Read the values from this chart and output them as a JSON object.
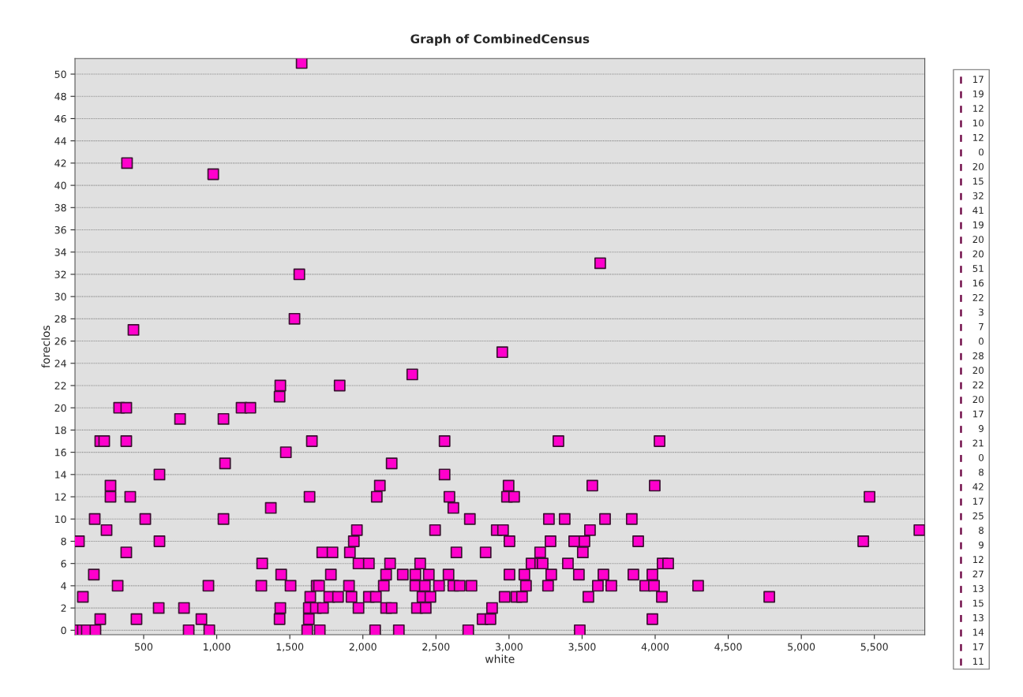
{
  "chart_data": {
    "type": "scatter",
    "title": "Graph of CombinedCensus",
    "xlabel": "white",
    "ylabel": "foreclos",
    "x": [
      1435,
      1430,
      1841,
      332,
      381,
      1170,
      1230,
      749,
      1046,
      203,
      230,
      381,
      1651,
      1473,
      1057,
      608,
      273,
      273,
      408,
      1635,
      1370,
      165,
      511,
      1046,
      246,
      1959,
      57,
      608,
      1938,
      381,
      1722,
      1792,
      1911,
      1311,
      1970,
      159,
      1441,
      1781,
      322,
      943,
      1305,
      1505,
      1684,
      1700,
      1905,
      84,
      1640,
      1770,
      1830,
      1922,
      603,
      776,
      1435,
      1630,
      1678,
      1727,
      1970,
      203,
      451,
      895,
      1430,
      1630,
      62,
      84,
      111,
      170,
      808,
      949,
      1619,
      1705,
      2954,
      2338,
      2559,
      3338,
      2197,
      2559,
      2116,
      2095,
      2592,
      2997,
      2986,
      3035,
      2619,
      3570,
      2732,
      3273,
      3381,
      3657,
      3840,
      2494,
      2916,
      2959,
      3554,
      3003,
      3284,
      3446,
      3516,
      3884,
      2640,
      2840,
      3213,
      3505,
      2041,
      2186,
      2392,
      3154,
      3213,
      3230,
      3403,
      2159,
      2273,
      2359,
      2451,
      2586,
      3003,
      3105,
      3289,
      3478,
      3646,
      3851,
      2143,
      2359,
      2424,
      2521,
      2619,
      2662,
      2743,
      3116,
      3267,
      3608,
      3700,
      3932,
      2041,
      2089,
      2408,
      2462,
      2970,
      3051,
      3089,
      3543,
      2159,
      2197,
      2370,
      2430,
      2884,
      2819,
      2873,
      2084,
      2246,
      2721,
      3484,
      4030,
      3997,
      5467,
      5808,
      5424,
      4051,
      4089,
      3981,
      3992,
      4294,
      4046,
      4781,
      3981,
      1581,
      386,
      976,
      1565,
      3624,
      1532,
      430
    ],
    "values": [
      22,
      21,
      22,
      20,
      20,
      20,
      20,
      19,
      19,
      17,
      17,
      17,
      17,
      16,
      15,
      14,
      13,
      12,
      12,
      12,
      11,
      10,
      10,
      10,
      9,
      9,
      8,
      8,
      8,
      7,
      7,
      7,
      7,
      6,
      6,
      5,
      5,
      5,
      4,
      4,
      4,
      4,
      4,
      4,
      4,
      3,
      3,
      3,
      3,
      3,
      2,
      2,
      2,
      2,
      2,
      2,
      2,
      1,
      1,
      1,
      1,
      1,
      0,
      0,
      0,
      0,
      0,
      0,
      0,
      0,
      25,
      23,
      17,
      17,
      15,
      14,
      13,
      12,
      12,
      13,
      12,
      12,
      11,
      13,
      10,
      10,
      10,
      10,
      10,
      9,
      9,
      9,
      9,
      8,
      8,
      8,
      8,
      8,
      7,
      7,
      7,
      7,
      6,
      6,
      6,
      6,
      6,
      6,
      6,
      5,
      5,
      5,
      5,
      5,
      5,
      5,
      5,
      5,
      5,
      5,
      4,
      4,
      4,
      4,
      4,
      4,
      4,
      4,
      4,
      4,
      4,
      4,
      3,
      3,
      3,
      3,
      3,
      3,
      3,
      3,
      2,
      2,
      2,
      2,
      2,
      1,
      1,
      0,
      0,
      0,
      0,
      17,
      13,
      12,
      9,
      8,
      6,
      6,
      5,
      4,
      4,
      3,
      3,
      1,
      51,
      42,
      41,
      32,
      33,
      28,
      27
    ],
    "color": "#ff00cc",
    "marker": "square",
    "grid": "y",
    "xlim": [
      30,
      5845
    ],
    "ylim": [
      -0.4,
      51.4
    ],
    "xticks": [
      500,
      {
        "value": 1000,
        "label": "1,000"
      },
      {
        "value": 1500,
        "label": "1,500"
      },
      {
        "value": 2000,
        "label": "2,000"
      },
      {
        "value": 2500,
        "label": "2,500"
      },
      {
        "value": 3000,
        "label": "3,000"
      },
      {
        "value": 3500,
        "label": "3,500"
      },
      {
        "value": 4000,
        "label": "4,000"
      },
      {
        "value": 4500,
        "label": "4,500"
      },
      {
        "value": 5000,
        "label": "5,000"
      },
      {
        "value": 5500,
        "label": "5,500"
      }
    ],
    "yticks": [
      0,
      2,
      4,
      6,
      8,
      10,
      12,
      14,
      16,
      18,
      20,
      22,
      24,
      26,
      28,
      30,
      32,
      34,
      36,
      38,
      40,
      42,
      44,
      46,
      48,
      50
    ],
    "annotations": [
      "17",
      "19",
      "12",
      "10",
      "12",
      "0",
      "20",
      "15",
      "32",
      "41",
      "19",
      "20",
      "20",
      "51",
      "16",
      "22",
      "3",
      "7",
      "0",
      "28",
      "20",
      "22",
      "20",
      "17",
      "9",
      "21",
      "0",
      "8",
      "42",
      "17",
      "25",
      "8",
      "9",
      "12",
      "27",
      "13",
      "15",
      "13",
      "14",
      "17",
      "11"
    ]
  }
}
